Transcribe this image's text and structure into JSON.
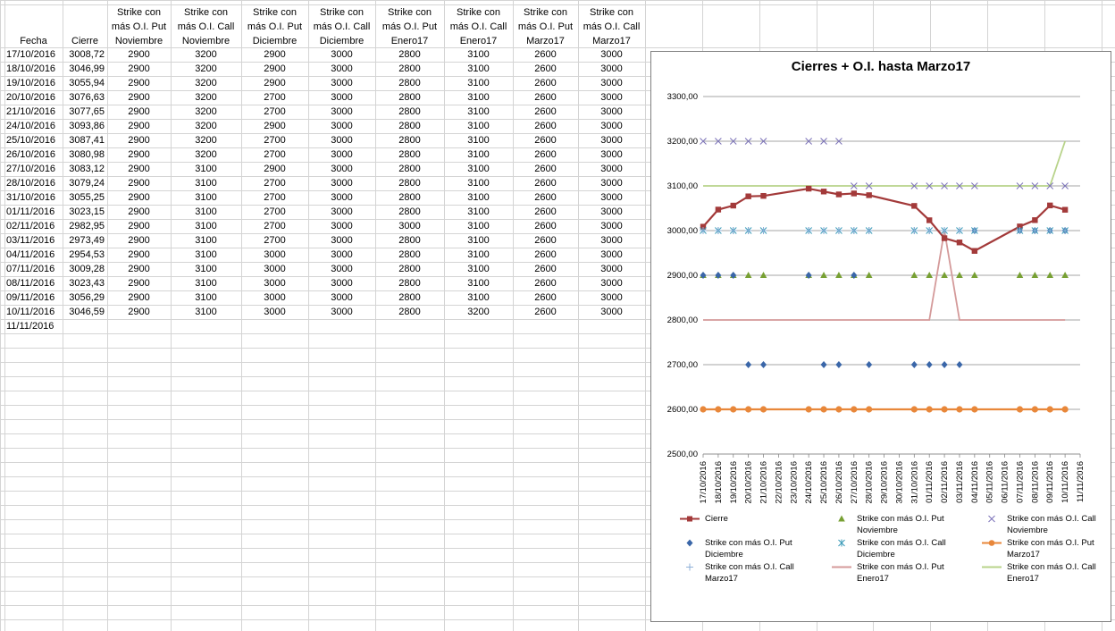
{
  "headers": {
    "fecha": "Fecha",
    "cierre": "Cierre",
    "cols": [
      [
        "Strike con",
        "más O.I. Put",
        "Noviembre"
      ],
      [
        "Strike con",
        "más O.I. Call",
        "Noviembre"
      ],
      [
        "Strike con",
        "más O.I. Put",
        "Diciembre"
      ],
      [
        "Strike con",
        "más O.I. Call",
        "Diciembre"
      ],
      [
        "Strike con",
        "más O.I. Put",
        "Enero17"
      ],
      [
        "Strike con",
        "más O.I. Call",
        "Enero17"
      ],
      [
        "Strike con",
        "más O.I. Put",
        "Marzo17"
      ],
      [
        "Strike con",
        "más O.I. Call",
        "Marzo17"
      ]
    ]
  },
  "rows": [
    {
      "fecha": "17/10/2016",
      "cierre": "3008,72",
      "v": [
        "2900",
        "3200",
        "2900",
        "3000",
        "2800",
        "3100",
        "2600",
        "3000"
      ]
    },
    {
      "fecha": "18/10/2016",
      "cierre": "3046,99",
      "v": [
        "2900",
        "3200",
        "2900",
        "3000",
        "2800",
        "3100",
        "2600",
        "3000"
      ]
    },
    {
      "fecha": "19/10/2016",
      "cierre": "3055,94",
      "v": [
        "2900",
        "3200",
        "2900",
        "3000",
        "2800",
        "3100",
        "2600",
        "3000"
      ]
    },
    {
      "fecha": "20/10/2016",
      "cierre": "3076,63",
      "v": [
        "2900",
        "3200",
        "2700",
        "3000",
        "2800",
        "3100",
        "2600",
        "3000"
      ]
    },
    {
      "fecha": "21/10/2016",
      "cierre": "3077,65",
      "v": [
        "2900",
        "3200",
        "2700",
        "3000",
        "2800",
        "3100",
        "2600",
        "3000"
      ]
    },
    {
      "fecha": "24/10/2016",
      "cierre": "3093,86",
      "v": [
        "2900",
        "3200",
        "2900",
        "3000",
        "2800",
        "3100",
        "2600",
        "3000"
      ]
    },
    {
      "fecha": "25/10/2016",
      "cierre": "3087,41",
      "v": [
        "2900",
        "3200",
        "2700",
        "3000",
        "2800",
        "3100",
        "2600",
        "3000"
      ]
    },
    {
      "fecha": "26/10/2016",
      "cierre": "3080,98",
      "v": [
        "2900",
        "3200",
        "2700",
        "3000",
        "2800",
        "3100",
        "2600",
        "3000"
      ]
    },
    {
      "fecha": "27/10/2016",
      "cierre": "3083,12",
      "v": [
        "2900",
        "3100",
        "2900",
        "3000",
        "2800",
        "3100",
        "2600",
        "3000"
      ]
    },
    {
      "fecha": "28/10/2016",
      "cierre": "3079,24",
      "v": [
        "2900",
        "3100",
        "2700",
        "3000",
        "2800",
        "3100",
        "2600",
        "3000"
      ]
    },
    {
      "fecha": "31/10/2016",
      "cierre": "3055,25",
      "v": [
        "2900",
        "3100",
        "2700",
        "3000",
        "2800",
        "3100",
        "2600",
        "3000"
      ]
    },
    {
      "fecha": "01/11/2016",
      "cierre": "3023,15",
      "v": [
        "2900",
        "3100",
        "2700",
        "3000",
        "2800",
        "3100",
        "2600",
        "3000"
      ]
    },
    {
      "fecha": "02/11/2016",
      "cierre": "2982,95",
      "v": [
        "2900",
        "3100",
        "2700",
        "3000",
        "3000",
        "3100",
        "2600",
        "3000"
      ]
    },
    {
      "fecha": "03/11/2016",
      "cierre": "2973,49",
      "v": [
        "2900",
        "3100",
        "2700",
        "3000",
        "2800",
        "3100",
        "2600",
        "3000"
      ]
    },
    {
      "fecha": "04/11/2016",
      "cierre": "2954,53",
      "v": [
        "2900",
        "3100",
        "3000",
        "3000",
        "2800",
        "3100",
        "2600",
        "3000"
      ]
    },
    {
      "fecha": "07/11/2016",
      "cierre": "3009,28",
      "v": [
        "2900",
        "3100",
        "3000",
        "3000",
        "2800",
        "3100",
        "2600",
        "3000"
      ]
    },
    {
      "fecha": "08/11/2016",
      "cierre": "3023,43",
      "v": [
        "2900",
        "3100",
        "3000",
        "3000",
        "2800",
        "3100",
        "2600",
        "3000"
      ]
    },
    {
      "fecha": "09/11/2016",
      "cierre": "3056,29",
      "v": [
        "2900",
        "3100",
        "3000",
        "3000",
        "2800",
        "3100",
        "2600",
        "3000"
      ]
    },
    {
      "fecha": "10/11/2016",
      "cierre": "3046,59",
      "v": [
        "2900",
        "3100",
        "3000",
        "3000",
        "2800",
        "3200",
        "2600",
        "3000"
      ]
    },
    {
      "fecha": "11/11/2016",
      "cierre": "",
      "v": [
        "",
        "",
        "",
        "",
        "",
        "",
        "",
        ""
      ]
    }
  ],
  "chart_data": {
    "type": "line",
    "title": "Cierres + O.I. hasta Marzo17",
    "ylim": [
      2500,
      3300
    ],
    "yticks": [
      "2500,00",
      "2600,00",
      "2700,00",
      "2800,00",
      "2900,00",
      "3000,00",
      "3100,00",
      "3200,00",
      "3300,00"
    ],
    "ytick_values": [
      2500,
      2600,
      2700,
      2800,
      2900,
      3000,
      3100,
      3200,
      3300
    ],
    "x": [
      "17/10/2016",
      "18/10/2016",
      "19/10/2016",
      "20/10/2016",
      "21/10/2016",
      "22/10/2016",
      "23/10/2016",
      "24/10/2016",
      "25/10/2016",
      "26/10/2016",
      "27/10/2016",
      "28/10/2016",
      "29/10/2016",
      "30/10/2016",
      "31/10/2016",
      "01/11/2016",
      "02/11/2016",
      "03/11/2016",
      "04/11/2016",
      "05/11/2016",
      "06/11/2016",
      "07/11/2016",
      "08/11/2016",
      "09/11/2016",
      "10/11/2016",
      "11/11/2016"
    ],
    "grid": true,
    "legend_position": "bottom",
    "series": [
      {
        "name": "Cierre",
        "style": "line-square",
        "color": "#a33a3a",
        "values": [
          3008.72,
          3046.99,
          3055.94,
          3076.63,
          3077.65,
          null,
          null,
          3093.86,
          3087.41,
          3080.98,
          3083.12,
          3079.24,
          null,
          null,
          3055.25,
          3023.15,
          2982.95,
          2973.49,
          2954.53,
          null,
          null,
          3009.28,
          3023.43,
          3056.29,
          3046.59,
          null
        ]
      },
      {
        "name": "Strike con más O.I. Put Noviembre",
        "style": "triangle",
        "color": "#77a033",
        "values": [
          2900,
          2900,
          2900,
          2900,
          2900,
          null,
          null,
          2900,
          2900,
          2900,
          2900,
          2900,
          null,
          null,
          2900,
          2900,
          2900,
          2900,
          2900,
          null,
          null,
          2900,
          2900,
          2900,
          2900,
          null
        ]
      },
      {
        "name": "Strike con más O.I. Call Noviembre",
        "style": "x",
        "color": "#7b72b8",
        "values": [
          3200,
          3200,
          3200,
          3200,
          3200,
          null,
          null,
          3200,
          3200,
          3200,
          3100,
          3100,
          null,
          null,
          3100,
          3100,
          3100,
          3100,
          3100,
          null,
          null,
          3100,
          3100,
          3100,
          3100,
          null
        ]
      },
      {
        "name": "Strike con más O.I. Put Diciembre",
        "style": "diamond",
        "color": "#3a66a8",
        "values": [
          2900,
          2900,
          2900,
          2700,
          2700,
          null,
          null,
          2900,
          2700,
          2700,
          2900,
          2700,
          null,
          null,
          2700,
          2700,
          2700,
          2700,
          3000,
          null,
          null,
          3000,
          3000,
          3000,
          3000,
          null
        ]
      },
      {
        "name": "Strike con más O.I. Call Diciembre",
        "style": "asterisk",
        "color": "#3b9ab8",
        "values": [
          3000,
          3000,
          3000,
          3000,
          3000,
          null,
          null,
          3000,
          3000,
          3000,
          3000,
          3000,
          null,
          null,
          3000,
          3000,
          3000,
          3000,
          3000,
          null,
          null,
          3000,
          3000,
          3000,
          3000,
          null
        ]
      },
      {
        "name": "Strike con más O.I. Put Marzo17",
        "style": "line-circle",
        "color": "#e8873a",
        "values": [
          2600,
          2600,
          2600,
          2600,
          2600,
          null,
          null,
          2600,
          2600,
          2600,
          2600,
          2600,
          null,
          null,
          2600,
          2600,
          2600,
          2600,
          2600,
          null,
          null,
          2600,
          2600,
          2600,
          2600,
          null
        ]
      },
      {
        "name": "Strike con más O.I. Call Marzo17",
        "style": "plus",
        "color": "#8fb0d8",
        "values": [
          3000,
          3000,
          3000,
          3000,
          3000,
          null,
          null,
          3000,
          3000,
          3000,
          3000,
          3000,
          null,
          null,
          3000,
          3000,
          3000,
          3000,
          3000,
          null,
          null,
          3000,
          3000,
          3000,
          3000,
          null
        ]
      },
      {
        "name": "Strike con más O.I. Put Enero17",
        "style": "line",
        "color": "#d49a9a",
        "values": [
          2800,
          2800,
          2800,
          2800,
          2800,
          null,
          null,
          2800,
          2800,
          2800,
          2800,
          2800,
          null,
          null,
          2800,
          2800,
          3000,
          2800,
          2800,
          null,
          null,
          2800,
          2800,
          2800,
          2800,
          null
        ]
      },
      {
        "name": "Strike con más O.I. Call Enero17",
        "style": "line",
        "color": "#b8d38a",
        "values": [
          3100,
          3100,
          3100,
          3100,
          3100,
          null,
          null,
          3100,
          3100,
          3100,
          3100,
          3100,
          null,
          null,
          3100,
          3100,
          3100,
          3100,
          3100,
          null,
          null,
          3100,
          3100,
          3100,
          3200,
          null
        ]
      }
    ],
    "legend": [
      [
        "Cierre"
      ],
      [
        "Strike con más O.I. Put",
        "Noviembre"
      ],
      [
        "Strike con más O.I. Call",
        "Noviembre"
      ],
      [
        "Strike con más O.I. Put",
        "Diciembre"
      ],
      [
        "Strike con más O.I. Call",
        "Diciembre"
      ],
      [
        "Strike con más O.I. Put",
        "Marzo17"
      ],
      [
        "Strike con más O.I. Call",
        "Marzo17"
      ],
      [
        "Strike con más O.I. Put",
        "Enero17"
      ],
      [
        "Strike con más O.I. Call",
        "Enero17"
      ]
    ]
  }
}
